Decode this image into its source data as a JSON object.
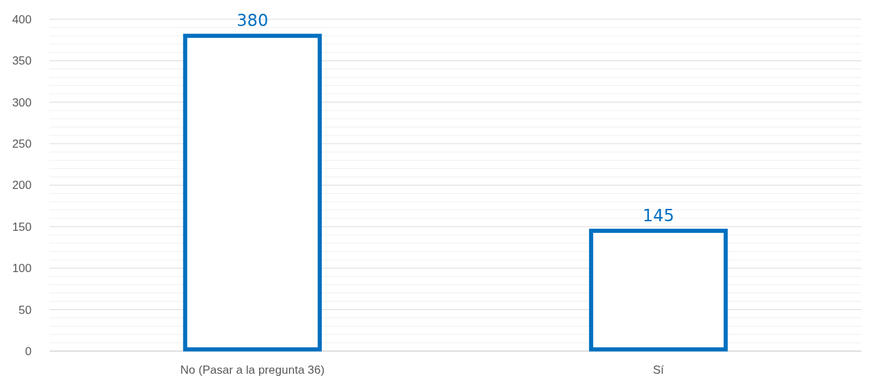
{
  "chart_data": {
    "type": "bar",
    "categories": [
      "No (Pasar a la pregunta 36)",
      "Sí"
    ],
    "values": [
      380,
      145
    ],
    "color": "#0070c0",
    "ylim": [
      0,
      400
    ],
    "yticks": [
      0,
      {
        "value": 10,
        "label": null
      },
      {
        "value": 20,
        "label": null
      },
      {
        "value": 30,
        "label": null
      },
      {
        "value": 40,
        "label": null
      },
      50,
      {
        "value": 60,
        "label": null
      },
      {
        "value": 70,
        "label": null
      },
      {
        "value": 80,
        "label": null
      },
      {
        "value": 90,
        "label": null
      },
      100,
      {
        "value": 110,
        "label": null
      },
      {
        "value": 120,
        "label": null
      },
      {
        "value": 130,
        "label": null
      },
      {
        "value": 140,
        "label": null
      },
      150,
      {
        "value": 160,
        "label": null
      },
      {
        "value": 170,
        "label": null
      },
      {
        "value": 180,
        "label": null
      },
      {
        "value": 190,
        "label": null
      },
      200,
      {
        "value": 210,
        "label": null
      },
      {
        "value": 220,
        "label": null
      },
      {
        "value": 230,
        "label": null
      },
      {
        "value": 240,
        "label": null
      },
      250,
      {
        "value": 260,
        "label": null
      },
      {
        "value": 270,
        "label": null
      },
      {
        "value": 280,
        "label": null
      },
      {
        "value": 290,
        "label": null
      },
      300,
      {
        "value": 310,
        "label": null
      },
      {
        "value": 320,
        "label": null
      },
      {
        "value": 330,
        "label": null
      },
      {
        "value": 340,
        "label": null
      },
      350,
      {
        "value": 360,
        "label": null
      },
      {
        "value": 370,
        "label": null
      },
      {
        "value": 380,
        "label": null
      },
      {
        "value": 390,
        "label": null
      },
      400
    ],
    "grid": "y",
    "data_labels": true
  }
}
